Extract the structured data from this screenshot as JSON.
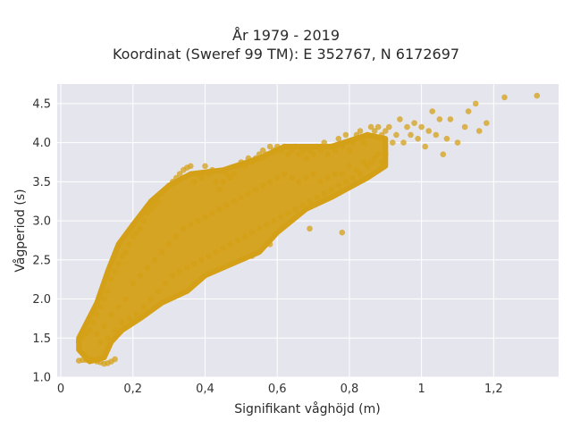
{
  "chart_data": {
    "type": "scatter",
    "title_line1": "År 1979 - 2019",
    "title_line2": "Koordinat (Sweref 99 TM): E 352767, N 6172697",
    "xlabel": "Signifikant våghöjd (m)",
    "ylabel": "Vågperiod (s)",
    "xlim": [
      -0.01,
      1.38
    ],
    "ylim": [
      1.0,
      4.75
    ],
    "xticks": [
      0,
      0.2,
      0.4,
      0.6,
      0.8,
      1,
      1.2
    ],
    "xtick_labels": [
      "0",
      "0,2",
      "0,4",
      "0,6",
      "0,8",
      "1",
      "1,2"
    ],
    "yticks": [
      1.0,
      1.5,
      2.0,
      2.5,
      3.0,
      3.5,
      4.0,
      4.5
    ],
    "ytick_labels": [
      "1.0",
      "1.5",
      "2.0",
      "2.5",
      "3.0",
      "3.5",
      "4.0",
      "4.5"
    ],
    "grid": true,
    "marker_color": "#D4A017",
    "background_color": "#E5E5EE",
    "points": [
      [
        0.05,
        1.21
      ],
      [
        0.06,
        1.22
      ],
      [
        0.07,
        1.22
      ],
      [
        0.08,
        1.23
      ],
      [
        0.09,
        1.22
      ],
      [
        0.1,
        1.2
      ],
      [
        0.11,
        1.19
      ],
      [
        0.12,
        1.17
      ],
      [
        0.13,
        1.18
      ],
      [
        0.14,
        1.2
      ],
      [
        0.15,
        1.23
      ],
      [
        0.05,
        1.45
      ],
      [
        0.06,
        1.52
      ],
      [
        0.07,
        1.56
      ],
      [
        0.08,
        1.6
      ],
      [
        0.09,
        1.7
      ],
      [
        0.1,
        1.8
      ],
      [
        0.1,
        1.55
      ],
      [
        0.11,
        1.9
      ],
      [
        0.11,
        1.45
      ],
      [
        0.12,
        2.0
      ],
      [
        0.12,
        1.65
      ],
      [
        0.13,
        2.1
      ],
      [
        0.13,
        1.5
      ],
      [
        0.14,
        2.25
      ],
      [
        0.14,
        1.8
      ],
      [
        0.15,
        2.35
      ],
      [
        0.15,
        1.6
      ],
      [
        0.16,
        2.45
      ],
      [
        0.16,
        1.9
      ],
      [
        0.17,
        2.55
      ],
      [
        0.17,
        1.7
      ],
      [
        0.18,
        2.6
      ],
      [
        0.18,
        2.0
      ],
      [
        0.19,
        2.7
      ],
      [
        0.19,
        1.75
      ],
      [
        0.2,
        2.8
      ],
      [
        0.2,
        2.2
      ],
      [
        0.21,
        2.85
      ],
      [
        0.21,
        1.8
      ],
      [
        0.22,
        2.9
      ],
      [
        0.22,
        2.3
      ],
      [
        0.23,
        3.0
      ],
      [
        0.23,
        1.9
      ],
      [
        0.24,
        3.1
      ],
      [
        0.24,
        2.4
      ],
      [
        0.25,
        3.15
      ],
      [
        0.25,
        2.0
      ],
      [
        0.26,
        3.2
      ],
      [
        0.26,
        2.5
      ],
      [
        0.27,
        3.25
      ],
      [
        0.27,
        2.1
      ],
      [
        0.28,
        3.35
      ],
      [
        0.28,
        2.6
      ],
      [
        0.29,
        3.4
      ],
      [
        0.29,
        2.2
      ],
      [
        0.3,
        3.45
      ],
      [
        0.3,
        2.7
      ],
      [
        0.31,
        3.5
      ],
      [
        0.31,
        2.3
      ],
      [
        0.32,
        3.55
      ],
      [
        0.32,
        2.8
      ],
      [
        0.33,
        3.6
      ],
      [
        0.33,
        2.35
      ],
      [
        0.34,
        3.65
      ],
      [
        0.34,
        2.9
      ],
      [
        0.35,
        3.68
      ],
      [
        0.35,
        2.4
      ],
      [
        0.36,
        3.7
      ],
      [
        0.36,
        2.95
      ],
      [
        0.37,
        3.5
      ],
      [
        0.37,
        2.45
      ],
      [
        0.38,
        3.6
      ],
      [
        0.38,
        3.0
      ],
      [
        0.39,
        3.55
      ],
      [
        0.39,
        2.5
      ],
      [
        0.4,
        3.7
      ],
      [
        0.4,
        3.05
      ],
      [
        0.41,
        3.6
      ],
      [
        0.41,
        2.55
      ],
      [
        0.42,
        3.65
      ],
      [
        0.42,
        3.1
      ],
      [
        0.43,
        3.5
      ],
      [
        0.43,
        2.6
      ],
      [
        0.44,
        3.4
      ],
      [
        0.44,
        3.15
      ],
      [
        0.45,
        3.5
      ],
      [
        0.45,
        2.65
      ],
      [
        0.46,
        3.6
      ],
      [
        0.46,
        3.2
      ],
      [
        0.47,
        3.55
      ],
      [
        0.47,
        2.7
      ],
      [
        0.48,
        3.6
      ],
      [
        0.48,
        3.25
      ],
      [
        0.49,
        3.7
      ],
      [
        0.49,
        2.75
      ],
      [
        0.5,
        3.75
      ],
      [
        0.5,
        3.3
      ],
      [
        0.51,
        3.7
      ],
      [
        0.51,
        2.8
      ],
      [
        0.52,
        3.8
      ],
      [
        0.52,
        3.35
      ],
      [
        0.53,
        3.75
      ],
      [
        0.53,
        2.85
      ],
      [
        0.54,
        3.8
      ],
      [
        0.54,
        3.4
      ],
      [
        0.55,
        3.85
      ],
      [
        0.55,
        2.9
      ],
      [
        0.56,
        3.9
      ],
      [
        0.56,
        3.45
      ],
      [
        0.57,
        3.85
      ],
      [
        0.57,
        2.95
      ],
      [
        0.58,
        3.95
      ],
      [
        0.58,
        3.5
      ],
      [
        0.59,
        3.9
      ],
      [
        0.59,
        3.0
      ],
      [
        0.6,
        3.95
      ],
      [
        0.6,
        3.55
      ],
      [
        0.61,
        3.9
      ],
      [
        0.61,
        3.05
      ],
      [
        0.62,
        3.95
      ],
      [
        0.62,
        3.6
      ],
      [
        0.63,
        3.85
      ],
      [
        0.63,
        3.1
      ],
      [
        0.64,
        3.9
      ],
      [
        0.64,
        3.55
      ],
      [
        0.65,
        3.95
      ],
      [
        0.65,
        3.15
      ],
      [
        0.66,
        3.85
      ],
      [
        0.66,
        3.5
      ],
      [
        0.67,
        3.9
      ],
      [
        0.67,
        3.2
      ],
      [
        0.68,
        3.8
      ],
      [
        0.68,
        3.55
      ],
      [
        0.69,
        3.9
      ],
      [
        0.69,
        3.25
      ],
      [
        0.7,
        3.85
      ],
      [
        0.7,
        3.6
      ],
      [
        0.71,
        3.95
      ],
      [
        0.71,
        3.3
      ],
      [
        0.72,
        3.9
      ],
      [
        0.72,
        3.5
      ],
      [
        0.73,
        4.0
      ],
      [
        0.73,
        3.35
      ],
      [
        0.74,
        3.85
      ],
      [
        0.74,
        3.55
      ],
      [
        0.75,
        3.95
      ],
      [
        0.75,
        3.4
      ],
      [
        0.76,
        3.9
      ],
      [
        0.76,
        3.6
      ],
      [
        0.77,
        4.05
      ],
      [
        0.77,
        3.45
      ],
      [
        0.78,
        3.95
      ],
      [
        0.78,
        3.6
      ],
      [
        0.79,
        4.1
      ],
      [
        0.79,
        3.5
      ],
      [
        0.8,
        3.9
      ],
      [
        0.8,
        3.7
      ],
      [
        0.81,
        4.0
      ],
      [
        0.81,
        3.55
      ],
      [
        0.82,
        4.1
      ],
      [
        0.82,
        3.65
      ],
      [
        0.83,
        4.15
      ],
      [
        0.83,
        3.6
      ],
      [
        0.84,
        4.0
      ],
      [
        0.84,
        3.75
      ],
      [
        0.85,
        4.1
      ],
      [
        0.85,
        3.7
      ],
      [
        0.86,
        4.2
      ],
      [
        0.86,
        3.75
      ],
      [
        0.87,
        4.15
      ],
      [
        0.87,
        3.8
      ],
      [
        0.88,
        4.2
      ],
      [
        0.88,
        3.85
      ],
      [
        0.89,
        4.1
      ],
      [
        0.89,
        3.75
      ],
      [
        0.9,
        4.15
      ],
      [
        0.9,
        3.85
      ],
      [
        0.91,
        4.2
      ],
      [
        0.92,
        4.0
      ],
      [
        0.93,
        4.1
      ],
      [
        0.94,
        4.3
      ],
      [
        0.95,
        4.0
      ],
      [
        0.96,
        4.2
      ],
      [
        0.97,
        4.1
      ],
      [
        0.98,
        4.25
      ],
      [
        0.99,
        4.05
      ],
      [
        1.0,
        4.2
      ],
      [
        1.01,
        3.95
      ],
      [
        1.02,
        4.15
      ],
      [
        1.03,
        4.4
      ],
      [
        1.04,
        4.1
      ],
      [
        1.05,
        4.3
      ],
      [
        1.06,
        3.85
      ],
      [
        1.07,
        4.05
      ],
      [
        1.08,
        4.3
      ],
      [
        1.1,
        4.0
      ],
      [
        1.12,
        4.2
      ],
      [
        1.13,
        4.4
      ],
      [
        1.15,
        4.5
      ],
      [
        1.16,
        4.15
      ],
      [
        1.18,
        4.25
      ],
      [
        1.23,
        4.58
      ],
      [
        1.32,
        4.6
      ],
      [
        0.78,
        2.85
      ],
      [
        0.69,
        2.9
      ],
      [
        0.58,
        2.7
      ],
      [
        0.53,
        2.55
      ]
    ]
  }
}
